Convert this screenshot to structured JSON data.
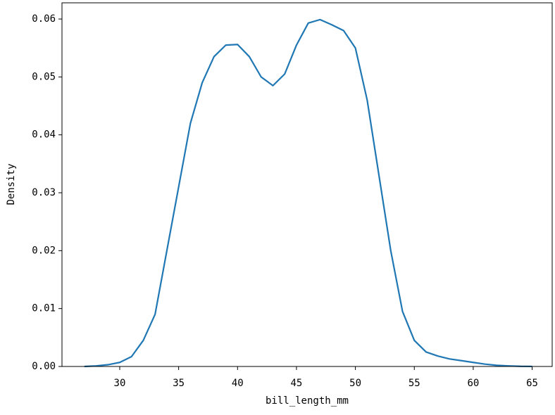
{
  "chart_data": {
    "type": "line",
    "xlabel": "bill_length_mm",
    "ylabel": "Density",
    "x": [
      27,
      28,
      29,
      30,
      31,
      32,
      33,
      34,
      35,
      36,
      37,
      38,
      39,
      40,
      41,
      42,
      43,
      44,
      45,
      46,
      47,
      48,
      49,
      50,
      51,
      52,
      53,
      54,
      55,
      56,
      57,
      58,
      59,
      60,
      61,
      62,
      63,
      64,
      65
    ],
    "series": [
      {
        "color": "#1f77b4",
        "values": [
          0,
          0.0001,
          0.0003,
          0.0007,
          0.0017,
          0.0045,
          0.009,
          0.02,
          0.031,
          0.042,
          0.049,
          0.0535,
          0.0555,
          0.0556,
          0.0535,
          0.05,
          0.0485,
          0.0505,
          0.0555,
          0.0593,
          0.0599,
          0.059,
          0.058,
          0.055,
          0.046,
          0.033,
          0.02,
          0.0095,
          0.0045,
          0.0025,
          0.0018,
          0.0013,
          0.001,
          0.0007,
          0.0004,
          0.0002,
          0.0001,
          3e-05,
          1e-05
        ]
      }
    ],
    "xlim": [
      25.1,
      66.7
    ],
    "ylim": [
      0,
      0.0628
    ],
    "xticks": [
      30,
      35,
      40,
      45,
      50,
      55,
      60,
      65
    ],
    "yticks": [
      {
        "value": 0,
        "label": "0.00"
      },
      {
        "value": 0.01,
        "label": "0.01"
      },
      {
        "value": 0.02,
        "label": "0.02"
      },
      {
        "value": 0.03,
        "label": "0.03"
      },
      {
        "value": 0.04,
        "label": "0.04"
      },
      {
        "value": 0.05,
        "label": "0.05"
      },
      {
        "value": 0.06,
        "label": "0.06"
      }
    ]
  }
}
